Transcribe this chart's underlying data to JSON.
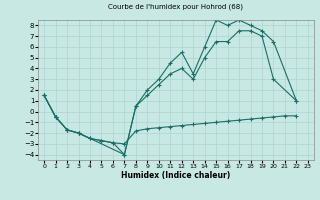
{
  "title": "Courbe de l'humidex pour Hohrod (68)",
  "xlabel": "Humidex (Indice chaleur)",
  "xlim": [
    -0.5,
    23.5
  ],
  "ylim": [
    -4.5,
    8.5
  ],
  "xticks": [
    0,
    1,
    2,
    3,
    4,
    5,
    6,
    7,
    8,
    9,
    10,
    11,
    12,
    13,
    14,
    15,
    16,
    17,
    18,
    19,
    20,
    21,
    22,
    23
  ],
  "yticks": [
    -4,
    -3,
    -2,
    -1,
    0,
    1,
    2,
    3,
    4,
    5,
    6,
    7,
    8
  ],
  "bg_color": "#c8e8e4",
  "grid_color": "#b0d8d4",
  "line_color": "#1a6e65",
  "lines": [
    {
      "x": [
        0,
        1,
        2,
        3,
        4,
        5,
        6,
        7,
        8,
        9,
        10,
        11,
        12,
        13,
        14,
        15,
        16,
        17,
        18,
        19,
        20,
        21,
        22
      ],
      "y": [
        1.5,
        -0.5,
        -1.7,
        -2.0,
        -2.5,
        -2.7,
        -2.9,
        -3.0,
        -1.8,
        -1.6,
        -1.5,
        -1.4,
        -1.3,
        -1.2,
        -1.1,
        -1.0,
        -0.9,
        -0.8,
        -0.7,
        -0.6,
        -0.5,
        -0.4,
        -0.4
      ]
    },
    {
      "x": [
        0,
        1,
        2,
        3,
        4,
        5,
        6,
        7,
        8,
        9,
        10,
        11,
        12,
        13,
        14,
        15,
        16,
        17,
        18,
        19,
        20,
        22
      ],
      "y": [
        1.5,
        -0.5,
        -1.7,
        -2.0,
        -2.5,
        -2.7,
        -2.9,
        -4.0,
        0.5,
        1.5,
        2.5,
        3.5,
        4.0,
        3.0,
        5.0,
        6.5,
        6.5,
        7.5,
        7.5,
        7.0,
        3.0,
        1.0
      ]
    },
    {
      "x": [
        0,
        1,
        2,
        3,
        7,
        8,
        9,
        10,
        11,
        12,
        13,
        14,
        15,
        16,
        17,
        18,
        19,
        20,
        22
      ],
      "y": [
        1.5,
        -0.5,
        -1.7,
        -2.0,
        -4.0,
        0.5,
        2.0,
        3.0,
        4.5,
        5.5,
        3.5,
        6.0,
        8.5,
        8.0,
        8.5,
        8.0,
        7.5,
        6.5,
        1.0
      ]
    }
  ]
}
